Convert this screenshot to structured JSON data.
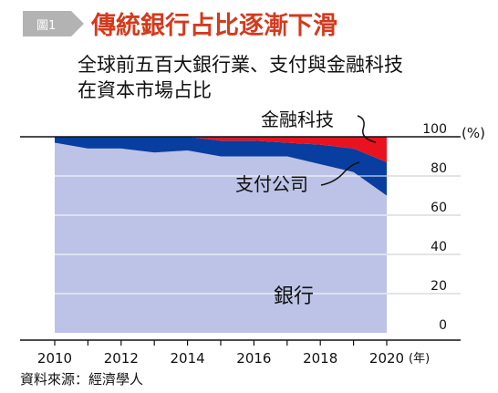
{
  "header": {
    "figure_tag": "圖1",
    "title": "傳統銀行占比逐漸下滑"
  },
  "subtitle": [
    "全球前五百大銀行業、支付與金融科技",
    "在資本市場占比"
  ],
  "source": "資料來源：經濟學人",
  "colors": {
    "tag_bg": "#b3b3b3",
    "title": "#d43a1e",
    "bank": "#bcc3e6",
    "payment": "#073e9f",
    "fintech": "#e8131f",
    "axis": "#111111",
    "grid": "#ffffff"
  },
  "chart_data": {
    "type": "area",
    "stacked": true,
    "x": [
      2010,
      2011,
      2012,
      2013,
      2014,
      2015,
      2016,
      2017,
      2018,
      2019,
      2020
    ],
    "series": [
      {
        "name": "銀行",
        "values": [
          97,
          94,
          94,
          92,
          93,
          90,
          90,
          90,
          86,
          82,
          70
        ]
      },
      {
        "name": "支付公司",
        "values": [
          3,
          6,
          6,
          8,
          7,
          8,
          8,
          7,
          10,
          12,
          17
        ]
      },
      {
        "name": "金融科技",
        "values": [
          0,
          0,
          0,
          0,
          0,
          2,
          2,
          3,
          4,
          6,
          13
        ]
      }
    ],
    "xticks": [
      "2010",
      "2012",
      "2014",
      "2016",
      "2018",
      "2020"
    ],
    "yticks": [
      "0",
      "20",
      "40",
      "60",
      "80",
      "100"
    ],
    "ylim": [
      0,
      100
    ],
    "xlim": [
      2010,
      2020
    ],
    "y_unit": "(%)",
    "x_unit": "(年)",
    "grid": true
  }
}
